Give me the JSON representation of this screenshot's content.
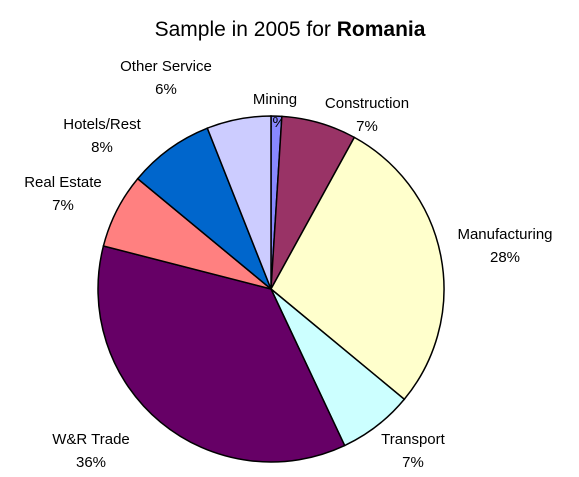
{
  "chart_data": {
    "type": "pie",
    "title": "Sample in 2005 for",
    "title_country": "Romania",
    "categories": [
      "Mining",
      "Construction",
      "Manufacturing",
      "Transport",
      "W&R Trade",
      "Real Estate",
      "Hotels/Rest",
      "Other Service"
    ],
    "values": [
      1,
      7,
      28,
      7,
      36,
      7,
      8,
      6
    ],
    "value_labels": [
      "1%",
      "7%",
      "28%",
      "7%",
      "36%",
      "7%",
      "8%",
      "6%"
    ],
    "colors": [
      "#8888ff",
      "#993366",
      "#ffffcc",
      "#ccffff",
      "#660066",
      "#ff8080",
      "#0066cc",
      "#ccccff"
    ]
  }
}
